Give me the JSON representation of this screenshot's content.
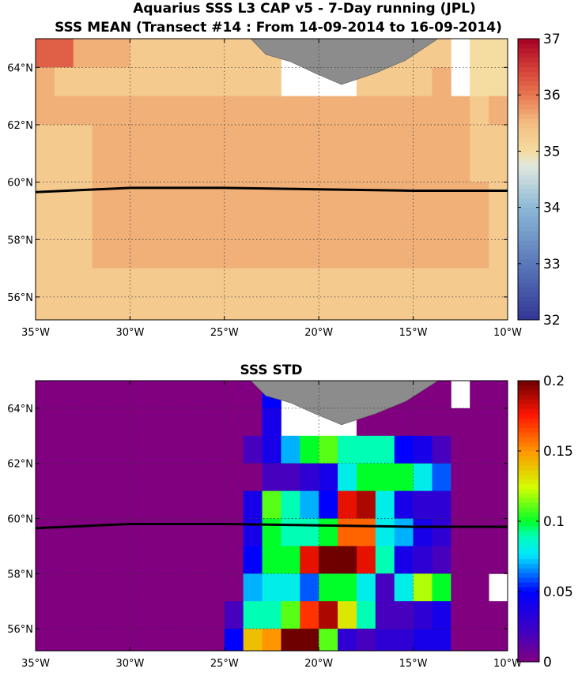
{
  "figure": {
    "title_line1": "Aquarius SSS L3 CAP v5 - 7-Day running (JPL)",
    "title_line2": "SSS MEAN (Transect #14 : From 14-09-2014 to 16-09-2014)"
  },
  "chart_data": [
    {
      "type": "heatmap",
      "title": "",
      "xlim": [
        -35,
        -10
      ],
      "ylim": [
        55.2,
        65
      ],
      "cell_size_deg": [
        1,
        1
      ],
      "grid": true,
      "x_ticks": [
        -35,
        -30,
        -25,
        -20,
        -15,
        -10
      ],
      "x_tick_labels": [
        "35°W",
        "30°W",
        "25°W",
        "20°W",
        "15°W",
        "10°W"
      ],
      "y_ticks": [
        56,
        58,
        60,
        62,
        64
      ],
      "y_tick_labels": [
        "56°N",
        "58°N",
        "60°N",
        "62°N",
        "64°N"
      ],
      "colorbar": {
        "min": 32,
        "max": 37,
        "ticks": [
          32,
          33,
          34,
          35,
          36,
          37
        ],
        "tick_labels": [
          "32",
          "33",
          "34",
          "35",
          "36",
          "37"
        ],
        "colormap": "blue-white-red"
      },
      "rows_lat_start": 64.5,
      "rows_lat_step": -1,
      "cols_lon_start": -35,
      "values": [
        [
          36.2,
          36.2,
          35.6,
          35.6,
          35.6,
          35.3,
          35.3,
          35.3,
          35.3,
          35.3,
          35.3,
          35.3,
          35.3,
          null,
          null,
          null,
          null,
          35.3,
          35.3,
          35.3,
          35.3,
          35.3,
          null,
          35.0,
          35.0
        ],
        [
          35.6,
          35.3,
          35.3,
          35.3,
          35.3,
          35.3,
          35.3,
          35.3,
          35.3,
          35.3,
          35.3,
          35.3,
          35.3,
          null,
          null,
          null,
          null,
          35.3,
          35.3,
          35.3,
          35.3,
          35.6,
          null,
          35.0,
          35.0
        ],
        [
          35.6,
          35.6,
          35.6,
          35.6,
          35.6,
          35.6,
          35.6,
          35.6,
          35.6,
          35.6,
          35.6,
          35.6,
          35.6,
          35.6,
          35.6,
          35.6,
          35.6,
          35.6,
          35.6,
          35.6,
          35.6,
          35.6,
          35.6,
          35.3,
          35.6
        ],
        [
          35.3,
          35.3,
          35.3,
          35.6,
          35.6,
          35.6,
          35.6,
          35.6,
          35.6,
          35.6,
          35.6,
          35.6,
          35.6,
          35.6,
          35.6,
          35.6,
          35.6,
          35.6,
          35.6,
          35.6,
          35.6,
          35.6,
          35.6,
          35.3,
          35.3
        ],
        [
          35.3,
          35.3,
          35.3,
          35.6,
          35.6,
          35.6,
          35.6,
          35.6,
          35.6,
          35.6,
          35.6,
          35.6,
          35.6,
          35.6,
          35.6,
          35.6,
          35.6,
          35.6,
          35.6,
          35.6,
          35.6,
          35.6,
          35.6,
          35.3,
          35.3
        ],
        [
          35.3,
          35.3,
          35.3,
          35.6,
          35.6,
          35.6,
          35.6,
          35.6,
          35.6,
          35.6,
          35.6,
          35.6,
          35.6,
          35.6,
          35.6,
          35.6,
          35.6,
          35.6,
          35.6,
          35.6,
          35.6,
          35.6,
          35.6,
          35.6,
          35.3
        ],
        [
          35.3,
          35.3,
          35.3,
          35.6,
          35.6,
          35.6,
          35.6,
          35.6,
          35.6,
          35.6,
          35.6,
          35.6,
          35.6,
          35.6,
          35.6,
          35.6,
          35.6,
          35.6,
          35.6,
          35.6,
          35.6,
          35.6,
          35.6,
          35.6,
          35.3
        ],
        [
          35.3,
          35.3,
          35.3,
          35.6,
          35.6,
          35.6,
          35.6,
          35.6,
          35.6,
          35.6,
          35.6,
          35.6,
          35.6,
          35.6,
          35.6,
          35.6,
          35.6,
          35.6,
          35.6,
          35.6,
          35.6,
          35.6,
          35.6,
          35.6,
          35.3
        ],
        [
          35.3,
          35.3,
          35.3,
          35.3,
          35.3,
          35.3,
          35.3,
          35.3,
          35.3,
          35.3,
          35.3,
          35.3,
          35.3,
          35.3,
          35.3,
          35.3,
          35.3,
          35.3,
          35.3,
          35.3,
          35.3,
          35.3,
          35.3,
          35.3,
          35.3
        ],
        [
          35.3,
          35.3,
          35.3,
          35.3,
          35.3,
          35.3,
          35.3,
          35.3,
          35.3,
          35.3,
          35.3,
          35.3,
          35.3,
          35.3,
          35.3,
          35.3,
          35.3,
          35.3,
          35.3,
          35.3,
          35.3,
          35.3,
          35.3,
          35.3,
          35.3
        ]
      ],
      "overlay_lines": [
        {
          "kind": "transect",
          "lon": [
            -35,
            -30,
            -25,
            -20,
            -15,
            -10
          ],
          "lat": [
            59.65,
            59.8,
            59.8,
            59.75,
            59.7,
            59.7
          ]
        }
      ]
    },
    {
      "type": "heatmap",
      "title": "SSS STD",
      "xlim": [
        -35,
        -10
      ],
      "ylim": [
        55.2,
        65
      ],
      "cell_size_deg": [
        1,
        1
      ],
      "grid": true,
      "x_ticks": [
        -35,
        -30,
        -25,
        -20,
        -15,
        -10
      ],
      "x_tick_labels": [
        "35°W",
        "30°W",
        "25°W",
        "20°W",
        "15°W",
        "10°W"
      ],
      "y_ticks": [
        56,
        58,
        60,
        62,
        64
      ],
      "y_tick_labels": [
        "56°N",
        "58°N",
        "60°N",
        "62°N",
        "64°N"
      ],
      "colorbar": {
        "min": 0,
        "max": 0.2,
        "ticks": [
          0,
          0.05,
          0.1,
          0.15,
          0.2
        ],
        "tick_labels": [
          "0",
          "0.05",
          "0.1",
          "0.15",
          "0.2"
        ],
        "colormap": "jet-purple"
      },
      "rows_lat_start": 64.5,
      "rows_lat_step": -1,
      "cols_lon_start": -35,
      "values": [
        [
          0,
          0,
          0,
          0,
          0,
          0,
          0,
          0,
          0,
          0,
          0,
          0,
          0.05,
          null,
          null,
          null,
          null,
          0,
          0,
          0,
          0,
          0,
          null,
          0,
          0
        ],
        [
          0,
          0,
          0,
          0,
          0,
          0,
          0,
          0,
          0,
          0,
          0,
          0,
          0.04,
          null,
          null,
          null,
          null,
          0,
          0,
          0,
          0,
          0,
          0,
          0,
          0
        ],
        [
          0,
          0,
          0,
          0,
          0,
          0,
          0,
          0,
          0,
          0,
          0,
          0.02,
          0.04,
          0.07,
          0.1,
          0.11,
          0.09,
          0.09,
          0.09,
          0.05,
          0.04,
          0.02,
          0,
          0,
          0
        ],
        [
          0,
          0,
          0,
          0,
          0,
          0,
          0,
          0,
          0,
          0,
          0,
          0,
          0.02,
          0.02,
          0.03,
          0.04,
          0.08,
          0.1,
          0.1,
          0.1,
          0.08,
          0.06,
          0,
          0,
          0
        ],
        [
          0,
          0,
          0,
          0,
          0,
          0,
          0,
          0,
          0,
          0,
          0,
          0.04,
          0.11,
          0.09,
          0.07,
          0.05,
          0.18,
          0.19,
          0.08,
          0.04,
          0.03,
          0.03,
          0,
          0,
          0
        ],
        [
          0,
          0,
          0,
          0,
          0,
          0,
          0,
          0,
          0,
          0,
          0,
          0.04,
          0.1,
          0.09,
          0.09,
          0.1,
          0.16,
          0.16,
          0.08,
          0.07,
          0.04,
          0.03,
          0,
          0,
          0
        ],
        [
          0,
          0,
          0,
          0,
          0,
          0,
          0,
          0,
          0,
          0,
          0,
          0.05,
          0.1,
          0.1,
          0.18,
          0.2,
          0.2,
          0.18,
          0.09,
          0.04,
          0.03,
          0.02,
          0,
          0,
          0
        ],
        [
          0,
          0,
          0,
          0,
          0,
          0,
          0,
          0,
          0,
          0,
          0,
          0.07,
          0.08,
          0.08,
          0.06,
          0.1,
          0.1,
          0.08,
          0.02,
          0.08,
          0.12,
          0.1,
          0,
          0,
          null
        ],
        [
          0,
          0,
          0,
          0,
          0,
          0,
          0,
          0,
          0,
          0,
          0.02,
          0.09,
          0.09,
          0.11,
          0.17,
          0.19,
          0.13,
          0.09,
          0.02,
          0.02,
          0.03,
          0.04,
          0,
          0,
          0
        ],
        [
          0,
          0,
          0,
          0,
          0,
          0,
          0,
          0,
          0,
          0,
          0.05,
          0.14,
          0.15,
          0.2,
          0.2,
          0.11,
          0.03,
          0.02,
          0.03,
          0.03,
          0.04,
          0.04,
          0,
          0,
          0
        ]
      ],
      "overlay_lines": [
        {
          "kind": "transect",
          "lon": [
            -35,
            -30,
            -25,
            -20,
            -15,
            -10
          ],
          "lat": [
            59.65,
            59.8,
            59.8,
            59.75,
            59.7,
            59.7
          ]
        }
      ]
    }
  ]
}
